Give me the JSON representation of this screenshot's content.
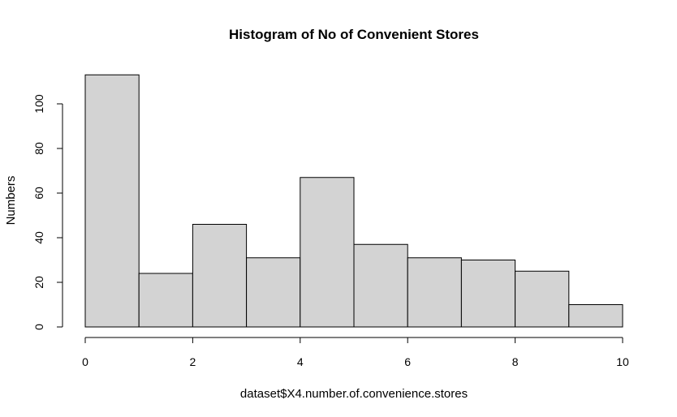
{
  "chart_data": {
    "type": "bar",
    "subtype": "histogram",
    "title": "Histogram of No of Convenient Stores",
    "xlabel": "dataset$X4.number.of.convenience.stores",
    "ylabel": "Numbers",
    "bins": [
      [
        0,
        1
      ],
      [
        1,
        2
      ],
      [
        2,
        3
      ],
      [
        3,
        4
      ],
      [
        4,
        5
      ],
      [
        5,
        6
      ],
      [
        6,
        7
      ],
      [
        7,
        8
      ],
      [
        8,
        9
      ],
      [
        9,
        10
      ]
    ],
    "values": [
      113,
      24,
      46,
      31,
      67,
      37,
      31,
      30,
      25,
      10
    ],
    "xlim": [
      0,
      10
    ],
    "ylim": [
      0,
      100
    ],
    "xticks": [
      "0",
      "2",
      "4",
      "6",
      "8",
      "10"
    ],
    "yticks": [
      "0",
      "20",
      "40",
      "60",
      "80",
      "100"
    ],
    "bar_color": "#d3d3d3",
    "grid": false,
    "legend": "none"
  }
}
